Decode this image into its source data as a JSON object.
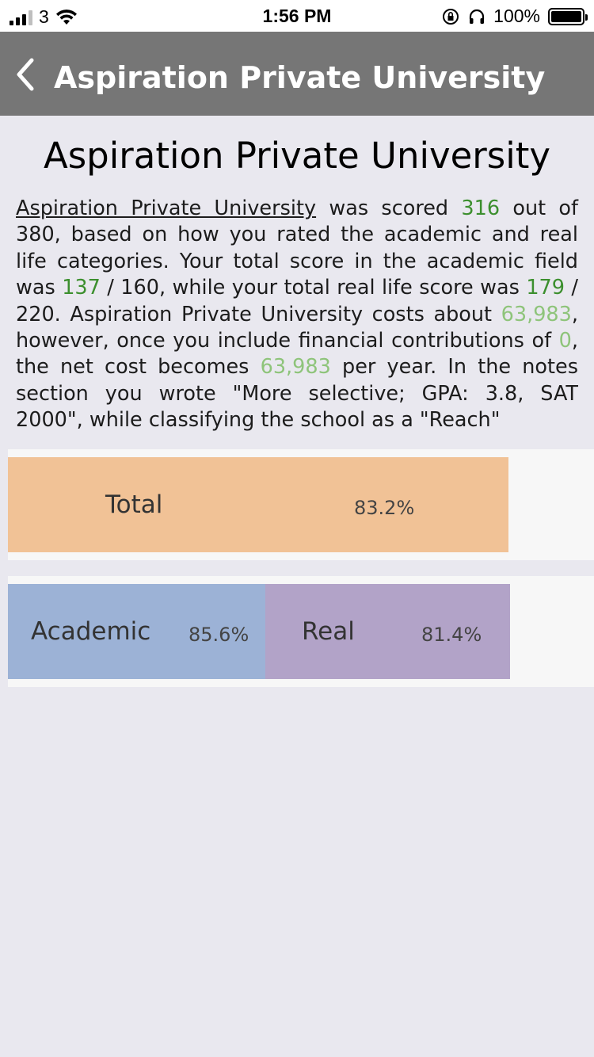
{
  "status_bar": {
    "carrier": "3",
    "time": "1:56 PM",
    "battery": "100%",
    "icons": [
      "signal-icon",
      "wifi-icon",
      "orientation-lock-icon",
      "headphones-icon",
      "battery-icon"
    ]
  },
  "nav": {
    "title": "Aspiration Private University",
    "back_icon": "chevron-left-icon"
  },
  "page": {
    "title": "Aspiration Private University"
  },
  "description": {
    "school_name": "Aspiration Private University",
    "t1": " was scored ",
    "score": "316",
    "t2": " out of 380, based on how you rated the academic and real life categories. Your total score in the academic field was ",
    "academic_score": "137",
    "t3": " / 160, while your total real life score was ",
    "real_score": "179",
    "t4": " / 220. Aspiration Private University costs about ",
    "cost": "63,983",
    "t5": ", however, once you include financial contributions of ",
    "contributions": "0",
    "t6": ", the net cost becomes ",
    "net_cost": "63,983",
    "t7": "  per year. In the notes section you wrote \"More selective; GPA: 3.8, SAT 2000\", while classifying the school as a \"Reach\""
  },
  "bars": {
    "total": {
      "label": "Total",
      "percent_text": "83.2%",
      "value": 0.832,
      "color": "#f1c296"
    },
    "academic": {
      "label": "Academic",
      "percent_text": "85.6%",
      "value": 0.856,
      "color": "#9cb2d6"
    },
    "real": {
      "label": "Real",
      "percent_text": "81.4%",
      "value": 0.814,
      "color": "#b2a3c8"
    }
  },
  "colors": {
    "nav_background": "#767676",
    "score_green": "#3c8f2e",
    "cost_green": "#8ec47a",
    "page_background": "#e9e8ef"
  }
}
